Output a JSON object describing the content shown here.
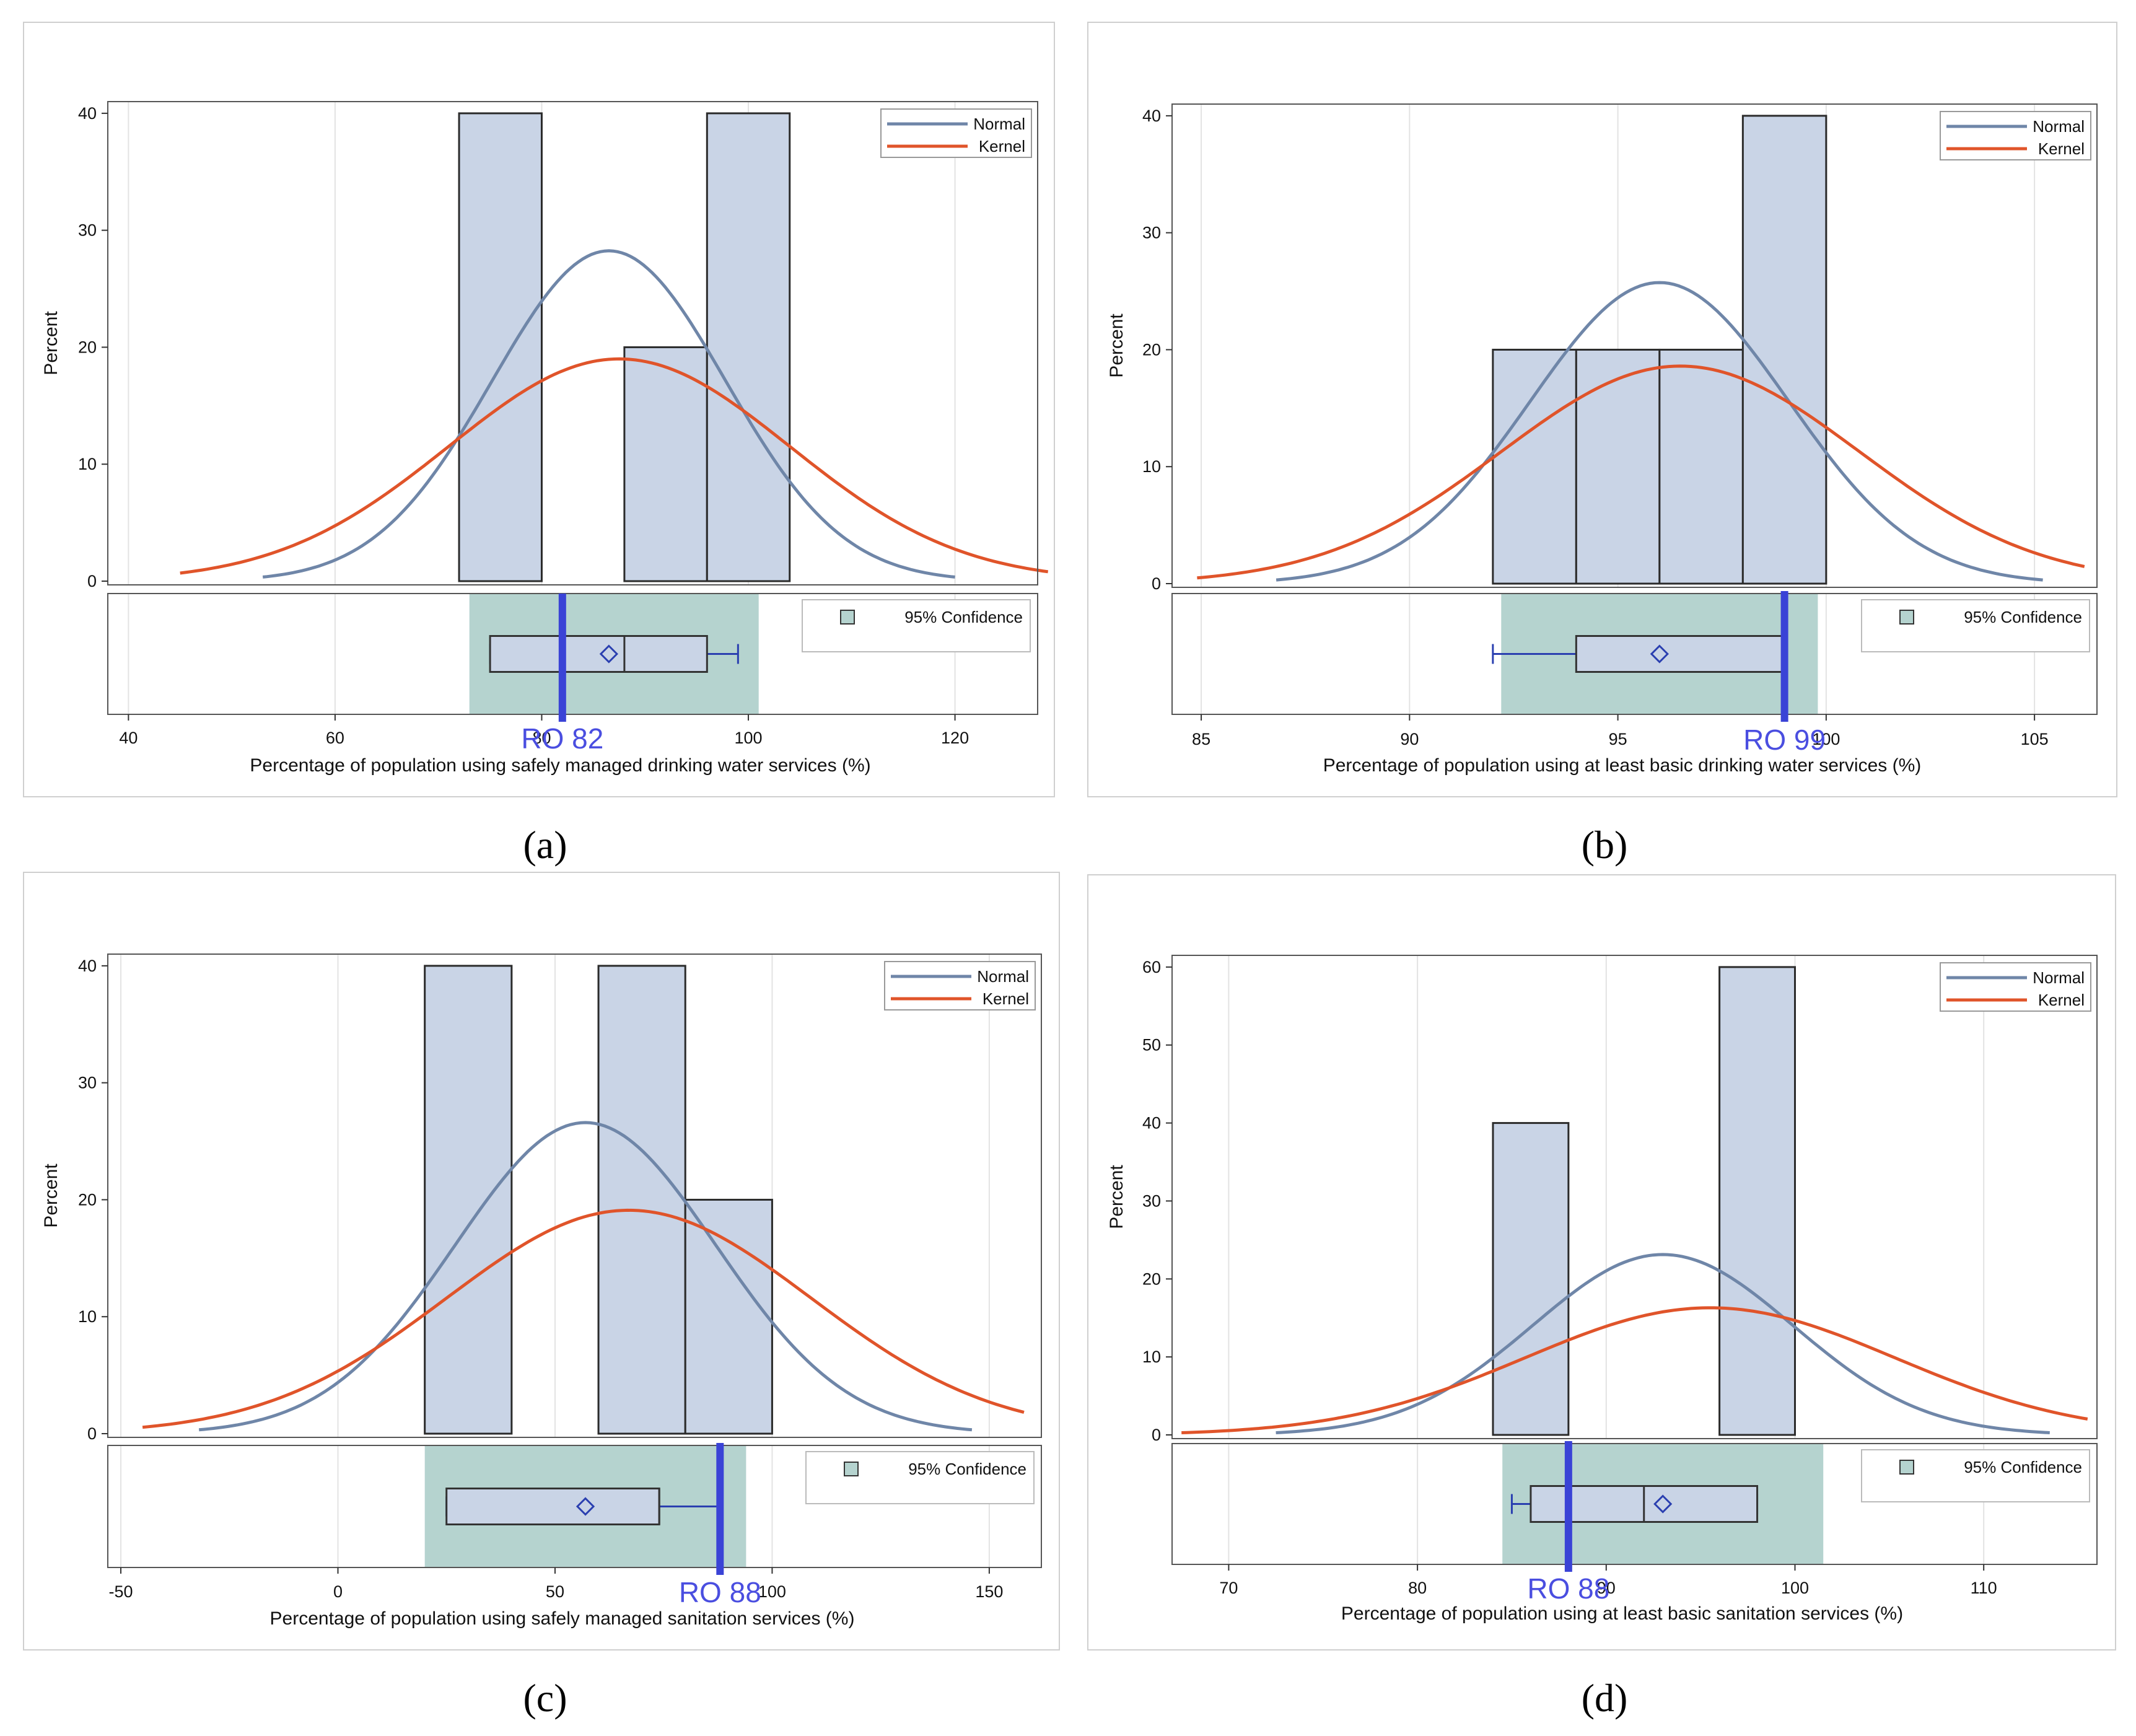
{
  "figure": {
    "colors": {
      "bar_fill": "#c9d4e6",
      "bar_stroke": "#2b2b2b",
      "normal": "#6f86a8",
      "kernel": "#e0542a",
      "confidence": "#b5d3cf",
      "ro_line": "#3a43d6",
      "box_stroke": "#2a3fb0",
      "grid": "#e3e3e3"
    },
    "legend": {
      "normal": "Normal",
      "kernel": "Kernel",
      "confidence": "95% Confidence"
    },
    "y_label": "Percent"
  },
  "chart_data": [
    {
      "type": "bar",
      "panel": "a",
      "caption": "(a)",
      "xlabel": "Percentage of population using safely managed drinking water services (%)",
      "ylabel": "Percent",
      "xlim": [
        38,
        128
      ],
      "ylim": [
        0,
        41
      ],
      "xticks": [
        40,
        60,
        80,
        100,
        120
      ],
      "xtick_labels": [
        "40",
        "60",
        "80",
        "100",
        "120"
      ],
      "yticks": [
        0,
        10,
        20,
        30,
        40
      ],
      "ytick_labels": [
        "0",
        "10",
        "20",
        "30",
        "40"
      ],
      "bars": [
        {
          "x0": 72,
          "x1": 80,
          "value": 40
        },
        {
          "x0": 80,
          "x1": 88,
          "value": 0
        },
        {
          "x0": 88,
          "x1": 96,
          "value": 20
        },
        {
          "x0": 96,
          "x1": 104,
          "value": 40
        }
      ],
      "normal": {
        "mean": 86.5,
        "sd": 11.3,
        "range": [
          53,
          120
        ]
      },
      "kernel": {
        "peak_x": 87.5,
        "peak_y": 19,
        "sd": 16.5,
        "range": [
          45,
          129
        ]
      },
      "confidence_band": [
        73,
        101
      ],
      "box": {
        "whisker_low": 75,
        "q1": 75,
        "median": 88,
        "q3": 96,
        "whisker_high": 99,
        "mean": 86.5
      },
      "ro": {
        "value": 82,
        "label": "RO  82"
      }
    },
    {
      "type": "bar",
      "panel": "b",
      "caption": "(b)",
      "xlabel": "Percentage of population using at least basic drinking water services (%)",
      "ylabel": "Percent",
      "xlim": [
        84.3,
        106.5
      ],
      "ylim": [
        0,
        41
      ],
      "xticks": [
        85,
        90,
        95,
        100,
        105
      ],
      "xtick_labels": [
        "85",
        "90",
        "95",
        "100",
        "105"
      ],
      "yticks": [
        0,
        10,
        20,
        30,
        40
      ],
      "ytick_labels": [
        "0",
        "10",
        "20",
        "30",
        "40"
      ],
      "bars": [
        {
          "x0": 92,
          "x1": 94,
          "value": 20
        },
        {
          "x0": 94,
          "x1": 96,
          "value": 20
        },
        {
          "x0": 96,
          "x1": 98,
          "value": 20
        },
        {
          "x0": 98,
          "x1": 100,
          "value": 40
        }
      ],
      "normal": {
        "mean": 96,
        "sd": 3.1,
        "range": [
          86.8,
          105.2
        ]
      },
      "kernel": {
        "peak_x": 96.5,
        "peak_y": 18.6,
        "sd": 4.3,
        "range": [
          84.9,
          106.2
        ]
      },
      "confidence_band": [
        92.2,
        99.8
      ],
      "box": {
        "whisker_low": 92,
        "q1": 94,
        "median": 99,
        "q3": 99,
        "whisker_high": 99,
        "mean": 96
      },
      "ro": {
        "value": 99,
        "label": "RO 99"
      }
    },
    {
      "type": "bar",
      "panel": "c",
      "caption": "(c)",
      "xlabel": "Percentage of population using safely managed sanitation services (%)",
      "ylabel": "Percent",
      "xlim": [
        -53,
        162
      ],
      "ylim": [
        0,
        41
      ],
      "xticks": [
        -50,
        0,
        50,
        100,
        150
      ],
      "xtick_labels": [
        "-50",
        "0",
        "50",
        "100",
        "150"
      ],
      "yticks": [
        0,
        10,
        20,
        30,
        40
      ],
      "ytick_labels": [
        "0",
        "10",
        "20",
        "30",
        "40"
      ],
      "bars": [
        {
          "x0": 20,
          "x1": 40,
          "value": 40
        },
        {
          "x0": 40,
          "x1": 60,
          "value": 0
        },
        {
          "x0": 60,
          "x1": 80,
          "value": 40
        },
        {
          "x0": 80,
          "x1": 100,
          "value": 20
        }
      ],
      "normal": {
        "mean": 57,
        "sd": 30,
        "range": [
          -32,
          146
        ]
      },
      "kernel": {
        "peak_x": 67,
        "peak_y": 19.1,
        "sd": 42,
        "range": [
          -45,
          158
        ]
      },
      "confidence_band": [
        20,
        94
      ],
      "box": {
        "whisker_low": 25,
        "q1": 25,
        "median": 74,
        "q3": 74,
        "whisker_high": 88,
        "mean": 57
      },
      "ro": {
        "value": 88,
        "label": "RO  88"
      }
    },
    {
      "type": "bar",
      "panel": "d",
      "caption": "(d)",
      "xlabel": "Percentage of population using at least basic sanitation services (%)",
      "ylabel": "Percent",
      "xlim": [
        67,
        116
      ],
      "ylim": [
        0,
        61.5
      ],
      "xticks": [
        70,
        80,
        90,
        100,
        110
      ],
      "xtick_labels": [
        "70",
        "80",
        "90",
        "100",
        "110"
      ],
      "yticks": [
        0,
        10,
        20,
        30,
        40,
        50,
        60
      ],
      "ytick_labels": [
        "0",
        "10",
        "20",
        "30",
        "40",
        "50",
        "60"
      ],
      "bars": [
        {
          "x0": 84,
          "x1": 88,
          "value": 40
        },
        {
          "x0": 88,
          "x1": 92,
          "value": 0
        },
        {
          "x0": 92,
          "x1": 96,
          "value": 0
        },
        {
          "x0": 96,
          "x1": 100,
          "value": 60
        }
      ],
      "normal": {
        "mean": 93,
        "sd": 6.9,
        "range": [
          72.5,
          113.5
        ]
      },
      "kernel": {
        "peak_x": 95.5,
        "peak_y": 16.3,
        "sd": 9.8,
        "range": [
          67.5,
          115.5
        ]
      },
      "confidence_band": [
        84.5,
        101.5
      ],
      "box": {
        "whisker_low": 85,
        "q1": 86,
        "median": 92,
        "q3": 98,
        "whisker_high": 98,
        "mean": 93
      },
      "ro": {
        "value": 88,
        "label": "RO  88"
      }
    }
  ]
}
